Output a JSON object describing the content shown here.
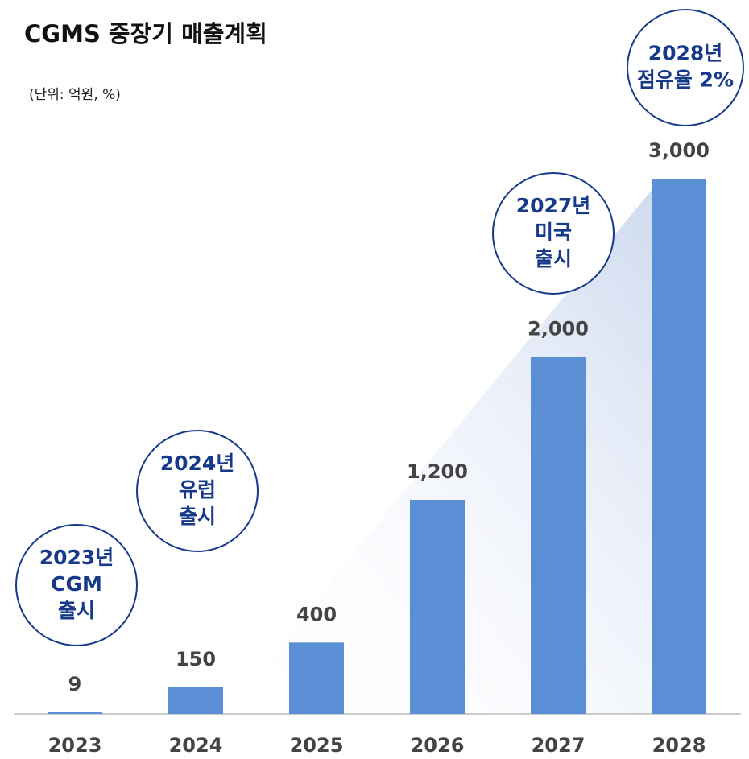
{
  "chart_data": {
    "type": "bar",
    "title": "CGMS 중장기 매출계획",
    "subtitle": "(단위: 억원, %)",
    "categories": [
      "2023",
      "2024",
      "2025",
      "2026",
      "2027",
      "2028"
    ],
    "values": [
      9,
      150,
      400,
      1200,
      2000,
      3000
    ],
    "value_labels": [
      "9",
      "150",
      "400",
      "1,200",
      "2,000",
      "3,000"
    ],
    "color": "#5a8fd6",
    "ylim": [
      0,
      3000
    ],
    "annotations": [
      {
        "lines": [
          "2023년",
          "CGM",
          "출시"
        ]
      },
      {
        "lines": [
          "2024년",
          "유럽",
          "출시"
        ]
      },
      {
        "lines": [
          "2027년",
          "미국",
          "출시"
        ]
      },
      {
        "lines": [
          "2028년",
          "점유율 2%"
        ]
      }
    ]
  }
}
